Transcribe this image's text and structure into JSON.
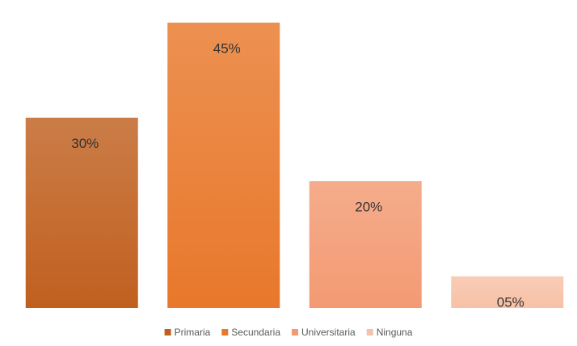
{
  "chart_data": {
    "type": "bar",
    "series": [
      {
        "name": "Primaria",
        "color": "#c0601f",
        "values": [
          30
        ],
        "value_labels": [
          "30%"
        ]
      },
      {
        "name": "Secundaria",
        "color": "#e8782b",
        "values": [
          45
        ],
        "value_labels": [
          "45%"
        ]
      },
      {
        "name": "Universitaria",
        "color": "#f39a72",
        "values": [
          20
        ],
        "value_labels": [
          "20%"
        ]
      },
      {
        "name": "Ninguna",
        "color": "#f7c1a6",
        "values": [
          5
        ],
        "value_labels": [
          "05%"
        ]
      }
    ],
    "legend": "bottom"
  }
}
